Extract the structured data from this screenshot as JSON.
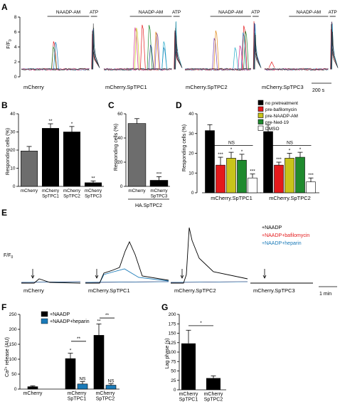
{
  "colors": {
    "black": "#000000",
    "gray": "#6d6d6d",
    "red": "#e41a1c",
    "olive": "#c8c41a",
    "green": "#1f8a2e",
    "blue": "#1a7ab8",
    "darkblue": "#1f3a8a",
    "purple": "#7a3fb0",
    "magenta": "#d42a8a",
    "orange": "#e08a1a",
    "cyan": "#22a8c8"
  },
  "panelA": {
    "letter": "A",
    "ylabel": "F/F",
    "ylabel_sub": "0",
    "yticks": [
      "8",
      "6",
      "4",
      "2",
      "0"
    ],
    "top_labels": [
      "NAADP-AM",
      "ATP"
    ],
    "conditions": [
      "mCherry",
      "mCherry.SpTPC1",
      "mCherry.SpTPC2",
      "mCherry.SpTPC3"
    ],
    "scale": "200 s"
  },
  "panelB": {
    "letter": "B",
    "ylabel": "Responding cells (%)",
    "yticks": [
      "40",
      "30",
      "20",
      "10",
      "0"
    ],
    "chart_data": {
      "type": "bar",
      "categories": [
        "mCherry",
        "mCherry SpTPC1",
        "mCherry SpTPC2",
        "mCherry SpTPC3"
      ],
      "values": [
        19.5,
        32,
        30,
        2
      ],
      "errors": [
        2.5,
        2.5,
        3,
        1
      ],
      "significance": [
        "",
        "**",
        "*",
        "**"
      ],
      "ylim": [
        0,
        40
      ]
    }
  },
  "panelC": {
    "letter": "C",
    "ylabel": "Responding cells (%)",
    "yticks": [
      "60",
      "40",
      "20",
      "0"
    ],
    "bracket": "HA.SpTPC2",
    "chart_data": {
      "type": "bar",
      "categories": [
        "mCherry",
        "mCherry SpTPC3"
      ],
      "values": [
        52,
        5
      ],
      "errors": [
        4,
        3
      ],
      "significance": [
        "",
        "***"
      ],
      "ylim": [
        0,
        60
      ]
    }
  },
  "panelD": {
    "letter": "D",
    "ylabel": "Responding cells (%)",
    "yticks": [
      "40",
      "30",
      "20",
      "10",
      "0"
    ],
    "ns": "NS",
    "chart_data": {
      "type": "bar",
      "groups": [
        "mCherry.SpTPC1",
        "mCherry.SpTPC2"
      ],
      "series": [
        {
          "name": "no pretreatment",
          "values": [
            31.5,
            31
          ],
          "errors": [
            3,
            3.5
          ],
          "sig": [
            "",
            ""
          ]
        },
        {
          "name": "pre-bafilomycin",
          "values": [
            14,
            14
          ],
          "errors": [
            4,
            1.5
          ],
          "sig": [
            "***",
            "***"
          ]
        },
        {
          "name": "pre-NAADP-AM",
          "values": [
            17.5,
            17.5
          ],
          "errors": [
            3,
            2.5
          ],
          "sig": [
            "*",
            "*"
          ]
        },
        {
          "name": "pre-Ned-19",
          "values": [
            16.5,
            18
          ],
          "errors": [
            3,
            2.5
          ],
          "sig": [
            "*",
            "*"
          ]
        },
        {
          "name": "DMSO",
          "values": [
            7.5,
            5.5
          ],
          "errors": [
            2,
            2
          ],
          "sig": [
            "***",
            "***"
          ]
        }
      ],
      "ylim": [
        0,
        40
      ]
    }
  },
  "panelE": {
    "letter": "E",
    "ylabel": "F/F",
    "ylabel_sub": "0",
    "conditions": [
      "mCherry",
      "mCherry.SpTPC1",
      "mCherry.SpTPC2",
      "mCherry.SpTPC3"
    ],
    "legend": [
      "+NAADP",
      "+NAADP+bafilomycin",
      "+NAADP+heparin"
    ],
    "scale": "1 min"
  },
  "panelF": {
    "letter": "F",
    "ylabel_pre": "Ca",
    "ylabel_sup": "2+",
    "ylabel_post": " release (AU)",
    "yticks": [
      "250",
      "200",
      "150",
      "100",
      "50",
      "0"
    ],
    "legend": [
      "+NAADP",
      "+NAADP+heparin"
    ],
    "chart_data": {
      "type": "bar",
      "categories": [
        "mCherry",
        "mCherry SpTPC1",
        "mCherry SpTPC2"
      ],
      "series": [
        {
          "name": "+NAADP",
          "values": [
            8,
            102,
            180
          ],
          "errors": [
            3,
            18,
            38
          ],
          "sig": [
            "",
            "*",
            "**"
          ]
        },
        {
          "name": "+NAADP+heparin",
          "values": [
            null,
            17,
            13
          ],
          "errors": [
            null,
            8,
            5
          ],
          "sig": [
            "",
            "NS",
            "NS"
          ]
        }
      ],
      "brackets": [
        "**",
        "**"
      ],
      "ylim": [
        0,
        250
      ]
    }
  },
  "panelG": {
    "letter": "G",
    "ylabel": "Lag phase (s)",
    "yticks": [
      "200",
      "175",
      "150",
      "125",
      "100",
      "75",
      "50",
      "25",
      "0"
    ],
    "chart_data": {
      "type": "bar",
      "categories": [
        "mCherry SpTPC1",
        "mCherry SpTPC2"
      ],
      "values": [
        123,
        31
      ],
      "errors": [
        35,
        6
      ],
      "bracket": "*",
      "ylim": [
        0,
        200
      ]
    }
  }
}
